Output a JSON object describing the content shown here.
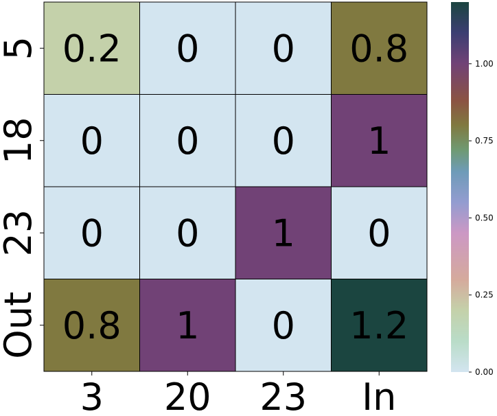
{
  "chart_data": {
    "type": "heatmap",
    "title": "",
    "xlabel": "",
    "ylabel": "",
    "x_categories": [
      "3",
      "20",
      "23",
      "In"
    ],
    "y_categories": [
      "5",
      "18",
      "23",
      "Out"
    ],
    "values": [
      [
        0.2,
        0,
        0,
        0.8
      ],
      [
        0,
        0,
        0,
        1
      ],
      [
        0,
        0,
        1,
        0
      ],
      [
        0.8,
        1,
        0,
        1.2
      ]
    ],
    "value_labels": [
      [
        "0.2",
        "0",
        "0",
        "0.8"
      ],
      [
        "0",
        "0",
        "0",
        "1"
      ],
      [
        "0",
        "0",
        "1",
        "0"
      ],
      [
        "0.8",
        "1",
        "0",
        "1.2"
      ]
    ],
    "colorbar": {
      "vmin": 0.0,
      "vmax": 1.2,
      "ticks": [
        0.0,
        0.25,
        0.5,
        0.75,
        1.0
      ],
      "tick_labels": [
        "0.00",
        "0.25",
        "0.50",
        "0.75",
        "1.00"
      ],
      "colormap": "cubehelix_r",
      "color_stops": [
        {
          "v": 0.0,
          "color": "#d3e5f0"
        },
        {
          "v": 0.1,
          "color": "#b9dcc8"
        },
        {
          "v": 0.2,
          "color": "#c4d1aa"
        },
        {
          "v": 0.3,
          "color": "#d5aa9c"
        },
        {
          "v": 0.45,
          "color": "#cc98c4"
        },
        {
          "v": 0.55,
          "color": "#939cd0"
        },
        {
          "v": 0.65,
          "color": "#6e9bb8"
        },
        {
          "v": 0.72,
          "color": "#6f9a73"
        },
        {
          "v": 0.8,
          "color": "#807940"
        },
        {
          "v": 0.88,
          "color": "#8b5343"
        },
        {
          "v": 1.0,
          "color": "#714276"
        },
        {
          "v": 1.1,
          "color": "#3c3e72"
        },
        {
          "v": 1.2,
          "color": "#1b4540"
        }
      ]
    },
    "cell_border_color": "#000000"
  }
}
